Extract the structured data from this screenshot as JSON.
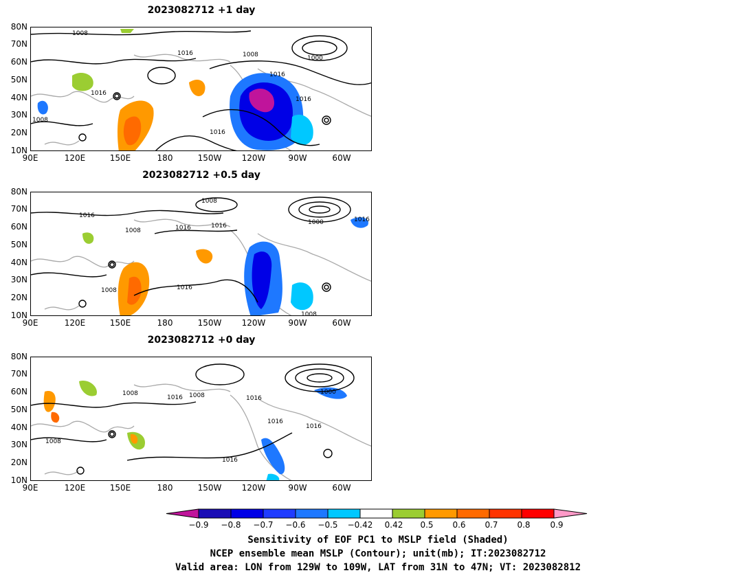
{
  "panels": [
    {
      "title": "2023082712  +1 day",
      "lat_labels": [
        "80N",
        "70N",
        "60N",
        "50N",
        "40N",
        "30N",
        "20N",
        "10N"
      ],
      "lon_labels": [
        "90E",
        "120E",
        "150E",
        "180",
        "150W",
        "120W",
        "90W",
        "60W"
      ],
      "contour_labels": [
        "1008",
        "1016",
        "1008",
        "1000",
        "1016",
        "1016",
        "1016",
        "1008",
        "1016"
      ]
    },
    {
      "title": "2023082712  +0.5 day",
      "lat_labels": [
        "80N",
        "70N",
        "60N",
        "50N",
        "40N",
        "30N",
        "20N",
        "10N"
      ],
      "lon_labels": [
        "90E",
        "120E",
        "150E",
        "180",
        "150W",
        "120W",
        "90W",
        "60W"
      ],
      "contour_labels": [
        "1008",
        "1016",
        "1008",
        "1016",
        "1016",
        "1000",
        "1016",
        "1008",
        "1016",
        "1008"
      ]
    },
    {
      "title": "2023082712  +0",
      "title_suffix": "day",
      "lat_labels": [
        "80N",
        "70N",
        "60N",
        "50N",
        "40N",
        "30N",
        "20N",
        "10N"
      ],
      "lon_labels": [
        "90E",
        "120E",
        "150E",
        "180",
        "150W",
        "120W",
        "90W",
        "60W"
      ],
      "contour_labels": [
        "1008",
        "1016",
        "1008",
        "1016",
        "1000",
        "1016",
        "1016",
        "1008",
        "1016"
      ]
    }
  ],
  "colorbar": {
    "labels": [
      "−0.9",
      "−0.8",
      "−0.7",
      "−0.6",
      "−0.5",
      "−0.42",
      "0.42",
      "0.5",
      "0.6",
      "0.7",
      "0.8",
      "0.9"
    ],
    "colors": [
      "#1a0db5",
      "#0000e6",
      "#1f3cff",
      "#1e78ff",
      "#00c8ff",
      "#ffffff",
      "#9bcd32",
      "#ff9900",
      "#ff6a00",
      "#ff3300",
      "#ff0000"
    ],
    "left_arrow_color": "#c0149b",
    "right_arrow_color": "#ff9ac8"
  },
  "caption": {
    "line1": "Sensitivity of EOF PC1 to MSLP field (Shaded)",
    "line2": "NCEP ensemble mean MSLP (Contour); unit(mb); IT:2023082712",
    "line3": "Valid area: LON from 129W to 109W, LAT from 31N to 47N; VT: 2023082812"
  }
}
